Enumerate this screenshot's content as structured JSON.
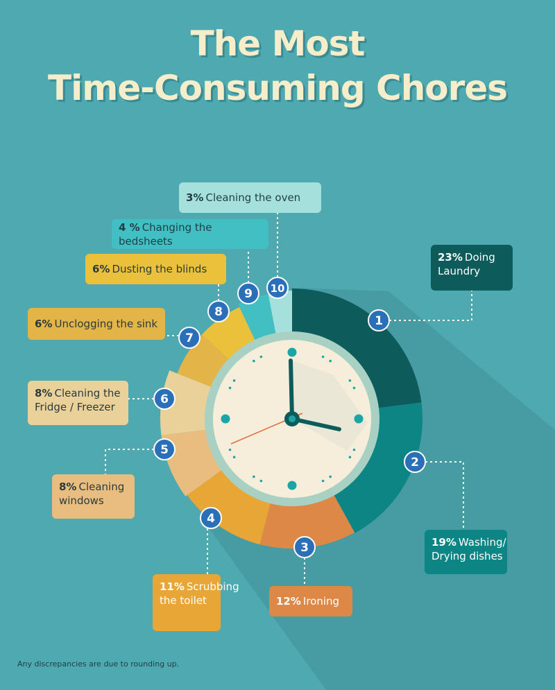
{
  "title": {
    "line1": "The Most",
    "line2": "Time-Consuming Chores"
  },
  "footnote": "Any discrepancies are due to rounding up.",
  "colors": {
    "background": "#4fa9b0",
    "clock_face": "#f6eeda",
    "clock_rim": "#a8d1c4",
    "clock_hands": "#0d5c5c",
    "second_hand": "#e06b3a",
    "marker_fill": "#2a6fb8"
  },
  "clock": {
    "hour_hand": "about 4 o'clock",
    "minute_hand": "12"
  },
  "chart_data": {
    "type": "pie",
    "unit": "%",
    "title": "The Most Time-Consuming Chores",
    "slices": [
      {
        "rank": "1",
        "value": 23,
        "pct": "23%",
        "label": "Doing Laundry",
        "color": "#0e5b5b"
      },
      {
        "rank": "2",
        "value": 19,
        "pct": "19%",
        "label": "Washing/ Drying dishes",
        "color": "#0e8585"
      },
      {
        "rank": "3",
        "value": 12,
        "pct": "12%",
        "label": "Ironing",
        "color": "#dd8847"
      },
      {
        "rank": "4",
        "value": 11,
        "pct": "11%",
        "label": "Scrubbing the toilet",
        "color": "#e8a637"
      },
      {
        "rank": "5",
        "value": 8,
        "pct": "8%",
        "label": "Cleaning windows",
        "color": "#e9bd7f"
      },
      {
        "rank": "6",
        "value": 8,
        "pct": "8%",
        "label": "Cleaning the Fridge / Freezer",
        "color": "#ead19a"
      },
      {
        "rank": "7",
        "value": 6,
        "pct": "6%",
        "label": "Unclogging the sink",
        "color": "#e3b447"
      },
      {
        "rank": "8",
        "value": 6,
        "pct": "6%",
        "label": "Dusting the blinds",
        "color": "#ebc13b"
      },
      {
        "rank": "9",
        "value": 4,
        "pct": "4 %",
        "label": "Changing the bedsheets",
        "color": "#41bfc3"
      },
      {
        "rank": "10",
        "value": 3,
        "pct": "3%",
        "label": "Cleaning the oven",
        "color": "#a6e0dc"
      }
    ]
  }
}
